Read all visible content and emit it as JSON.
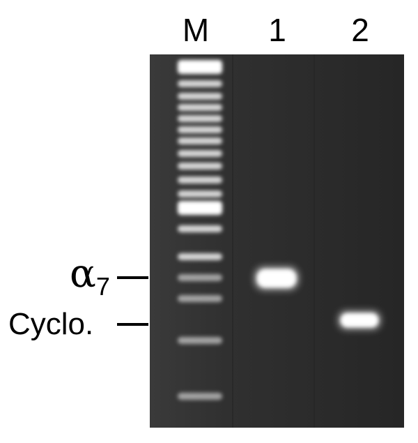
{
  "figure": {
    "lanes": [
      {
        "id": "M",
        "label": "M"
      },
      {
        "id": "1",
        "label": "1"
      },
      {
        "id": "2",
        "label": "2"
      }
    ],
    "band_labels": {
      "alpha": {
        "symbol": "α",
        "subscript": "7"
      },
      "cyclo": {
        "text": "Cyclo."
      }
    },
    "colors": {
      "gel_background": "#2e2e2e",
      "band": "#ffffff",
      "label": "#000000",
      "page": "#ffffff"
    },
    "ladder_band_count": 18
  }
}
